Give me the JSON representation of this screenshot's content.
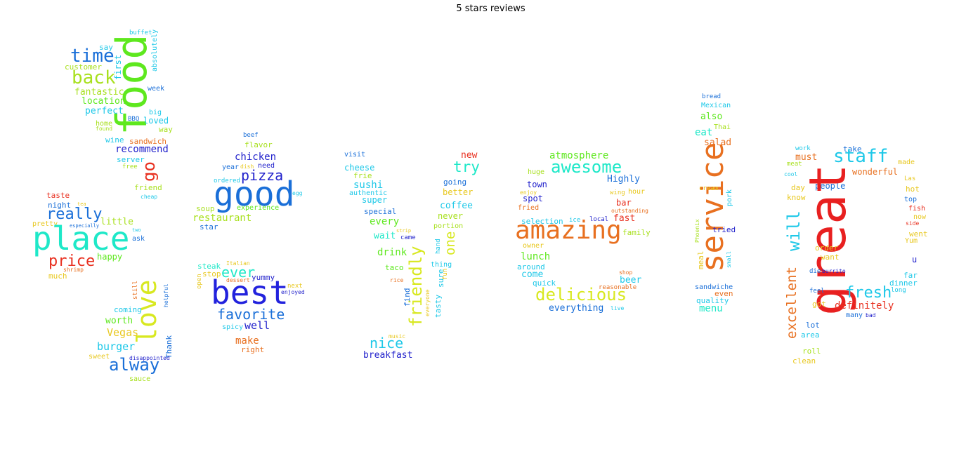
{
  "title": "5 stars reviews",
  "words": [
    {
      "t": "buffet",
      "c": "#1ec8e8"
    },
    {
      "t": "absolutely",
      "c": "#1ec8e8"
    },
    {
      "t": "say",
      "c": "#1ec8e8"
    },
    {
      "t": "time",
      "c": "#1a6fd8"
    },
    {
      "t": "first",
      "c": "#1ec8e8"
    },
    {
      "t": "customer",
      "c": "#a8e01e"
    },
    {
      "t": "food",
      "c": "#5ee81e"
    },
    {
      "t": "back",
      "c": "#a8e01e"
    },
    {
      "t": "fantastic",
      "c": "#a8e01e"
    },
    {
      "t": "week",
      "c": "#1a6fd8"
    },
    {
      "t": "location",
      "c": "#5ee81e"
    },
    {
      "t": "perfect",
      "c": "#1ec8e8"
    },
    {
      "t": "big",
      "c": "#1ec8e8"
    },
    {
      "t": "home",
      "c": "#a8e01e"
    },
    {
      "t": "BBQ",
      "c": "#1a6fd8"
    },
    {
      "t": "loved",
      "c": "#1ec8e8"
    },
    {
      "t": "found",
      "c": "#a8e01e"
    },
    {
      "t": "way",
      "c": "#a8e01e"
    },
    {
      "t": "wine",
      "c": "#1ec8e8"
    },
    {
      "t": "sandwich",
      "c": "#e87020"
    },
    {
      "t": "recommend",
      "c": "#2222cc"
    },
    {
      "t": "server",
      "c": "#1ec8e8"
    },
    {
      "t": "go",
      "c": "#e83020"
    },
    {
      "t": "free",
      "c": "#a8e01e"
    },
    {
      "t": "friend",
      "c": "#a8e01e"
    },
    {
      "t": "taste",
      "c": "#e83020"
    },
    {
      "t": "cheap",
      "c": "#1ec8e8"
    },
    {
      "t": "night",
      "c": "#1a6fd8"
    },
    {
      "t": "tea",
      "c": "#e8c820"
    },
    {
      "t": "really",
      "c": "#1a6fd8"
    },
    {
      "t": "pretty",
      "c": "#e8c820"
    },
    {
      "t": "especially",
      "c": "#1a6fd8"
    },
    {
      "t": "little",
      "c": "#a8e01e"
    },
    {
      "t": "two",
      "c": "#1ec8e8"
    },
    {
      "t": "place",
      "c": "#1ee8c8"
    },
    {
      "t": "ask",
      "c": "#1a6fd8"
    },
    {
      "t": "price",
      "c": "#e83020"
    },
    {
      "t": "happy",
      "c": "#5ee81e"
    },
    {
      "t": "shrimp",
      "c": "#e87020"
    },
    {
      "t": "much",
      "c": "#e8c820"
    },
    {
      "t": "still",
      "c": "#e87020"
    },
    {
      "t": "helpful",
      "c": "#1a6fd8"
    },
    {
      "t": "love",
      "c": "#d8e820"
    },
    {
      "t": "coming",
      "c": "#1ec8e8"
    },
    {
      "t": "worth",
      "c": "#5ee81e"
    },
    {
      "t": "Thank",
      "c": "#1a6fd8"
    },
    {
      "t": "Vegas",
      "c": "#e8c820"
    },
    {
      "t": "burger",
      "c": "#1ec8e8"
    },
    {
      "t": "sweet",
      "c": "#e8c820"
    },
    {
      "t": "disappointed",
      "c": "#2222cc"
    },
    {
      "t": "alway",
      "c": "#1a6fd8"
    },
    {
      "t": "sauce",
      "c": "#a8e01e"
    },
    {
      "t": "beef",
      "c": "#1a6fd8"
    },
    {
      "t": "flavor",
      "c": "#a8e01e"
    },
    {
      "t": "chicken",
      "c": "#2222cc"
    },
    {
      "t": "year",
      "c": "#1a6fd8"
    },
    {
      "t": "dish",
      "c": "#e8c820"
    },
    {
      "t": "need",
      "c": "#2222cc"
    },
    {
      "t": "pizza",
      "c": "#2222cc"
    },
    {
      "t": "ordered",
      "c": "#1ec8e8"
    },
    {
      "t": "good",
      "c": "#1a6fd8"
    },
    {
      "t": "egg",
      "c": "#1ec8e8"
    },
    {
      "t": "soup",
      "c": "#a8e01e"
    },
    {
      "t": "experience",
      "c": "#5ee81e"
    },
    {
      "t": "restaurant",
      "c": "#a8e01e"
    },
    {
      "t": "star",
      "c": "#1a6fd8"
    },
    {
      "t": "Italian",
      "c": "#e8c820"
    },
    {
      "t": "steak",
      "c": "#1ee8c8"
    },
    {
      "t": "ever",
      "c": "#1ee8c8"
    },
    {
      "t": "open",
      "c": "#e8c820"
    },
    {
      "t": "stop",
      "c": "#e8c820"
    },
    {
      "t": "yummy",
      "c": "#2222cc"
    },
    {
      "t": "dessert",
      "c": "#e87020"
    },
    {
      "t": "best",
      "c": "#2222dd"
    },
    {
      "t": "next",
      "c": "#e8c820"
    },
    {
      "t": "enjoyed",
      "c": "#2222cc"
    },
    {
      "t": "favorite",
      "c": "#1a6fd8"
    },
    {
      "t": "spicy",
      "c": "#1ec8e8"
    },
    {
      "t": "well",
      "c": "#2222cc"
    },
    {
      "t": "make",
      "c": "#e87020"
    },
    {
      "t": "right",
      "c": "#e87020"
    },
    {
      "t": "visit",
      "c": "#1a6fd8"
    },
    {
      "t": "new",
      "c": "#e83020"
    },
    {
      "t": "try",
      "c": "#1ee8c8"
    },
    {
      "t": "cheese",
      "c": "#1ec8e8"
    },
    {
      "t": "frie",
      "c": "#a8e01e"
    },
    {
      "t": "going",
      "c": "#1a6fd8"
    },
    {
      "t": "sushi",
      "c": "#1ec8e8"
    },
    {
      "t": "authentic",
      "c": "#1ec8e8"
    },
    {
      "t": "better",
      "c": "#e8c820"
    },
    {
      "t": "super",
      "c": "#1ec8e8"
    },
    {
      "t": "coffee",
      "c": "#1ec8e8"
    },
    {
      "t": "special",
      "c": "#1a6fd8"
    },
    {
      "t": "never",
      "c": "#a8e01e"
    },
    {
      "t": "every",
      "c": "#5ee81e"
    },
    {
      "t": "portion",
      "c": "#a8e01e"
    },
    {
      "t": "strip",
      "c": "#e8c820"
    },
    {
      "t": "wait",
      "c": "#1ee8c8"
    },
    {
      "t": "came",
      "c": "#2222cc"
    },
    {
      "t": "hand",
      "c": "#1ec8e8"
    },
    {
      "t": "one",
      "c": "#d8e820"
    },
    {
      "t": "drink",
      "c": "#5ee81e"
    },
    {
      "t": "friendly",
      "c": "#d8e820"
    },
    {
      "t": "thing",
      "c": "#1ec8e8"
    },
    {
      "t": "taco",
      "c": "#5ee81e"
    },
    {
      "t": "sure",
      "c": "#1ec8e8"
    },
    {
      "t": "fun",
      "c": "#e8c820"
    },
    {
      "t": "rice",
      "c": "#e87020"
    },
    {
      "t": "find",
      "c": "#1a6fd8"
    },
    {
      "t": "everyone",
      "c": "#e8c820"
    },
    {
      "t": "tasty",
      "c": "#1ec8e8"
    },
    {
      "t": "music",
      "c": "#e8c820"
    },
    {
      "t": "nice",
      "c": "#1ec8e8"
    },
    {
      "t": "breakfast",
      "c": "#2222cc"
    },
    {
      "t": "atmosphere",
      "c": "#5ee81e"
    },
    {
      "t": "awesome",
      "c": "#1ee8c8"
    },
    {
      "t": "huge",
      "c": "#a8e01e"
    },
    {
      "t": "town",
      "c": "#2222cc"
    },
    {
      "t": "Highly",
      "c": "#1a6fd8"
    },
    {
      "t": "enjoy",
      "c": "#e8c820"
    },
    {
      "t": "wing",
      "c": "#e8c820"
    },
    {
      "t": "hour",
      "c": "#e8c820"
    },
    {
      "t": "spot",
      "c": "#2222cc"
    },
    {
      "t": "bar",
      "c": "#e83020"
    },
    {
      "t": "fried",
      "c": "#e87020"
    },
    {
      "t": "outstanding",
      "c": "#e87020"
    },
    {
      "t": "selection",
      "c": "#1ec8e8"
    },
    {
      "t": "ice",
      "c": "#1ec8e8"
    },
    {
      "t": "local",
      "c": "#2222cc"
    },
    {
      "t": "fast",
      "c": "#e83020"
    },
    {
      "t": "amazing",
      "c": "#e87020"
    },
    {
      "t": "family",
      "c": "#a8e01e"
    },
    {
      "t": "owner",
      "c": "#e8c820"
    },
    {
      "t": "lunch",
      "c": "#5ee81e"
    },
    {
      "t": "around",
      "c": "#1ec8e8"
    },
    {
      "t": "come",
      "c": "#1ec8e8"
    },
    {
      "t": "shop",
      "c": "#e87020"
    },
    {
      "t": "quick",
      "c": "#1ec8e8"
    },
    {
      "t": "beer",
      "c": "#1ec8e8"
    },
    {
      "t": "reasonable",
      "c": "#e87020"
    },
    {
      "t": "delicious",
      "c": "#d8e820"
    },
    {
      "t": "everything",
      "c": "#1a6fd8"
    },
    {
      "t": "live",
      "c": "#1ec8e8"
    },
    {
      "t": "bread",
      "c": "#1a6fd8"
    },
    {
      "t": "Mexican",
      "c": "#1ec8e8"
    },
    {
      "t": "also",
      "c": "#5ee81e"
    },
    {
      "t": "Thai",
      "c": "#a8e01e"
    },
    {
      "t": "eat",
      "c": "#1ee8c8"
    },
    {
      "t": "salad",
      "c": "#e87020"
    },
    {
      "t": "service",
      "c": "#e87020"
    },
    {
      "t": "cream",
      "c": "#e8c820"
    },
    {
      "t": "pork",
      "c": "#1ec8e8"
    },
    {
      "t": "tried",
      "c": "#2222cc"
    },
    {
      "t": "Phoenix",
      "c": "#a8e01e"
    },
    {
      "t": "meal",
      "c": "#e8c820"
    },
    {
      "t": "small",
      "c": "#1ec8e8"
    },
    {
      "t": "sandwiche",
      "c": "#1a6fd8"
    },
    {
      "t": "even",
      "c": "#e87020"
    },
    {
      "t": "quality",
      "c": "#1ec8e8"
    },
    {
      "t": "menu",
      "c": "#1ee8c8"
    },
    {
      "t": "work",
      "c": "#1ec8e8"
    },
    {
      "t": "take",
      "c": "#1a6fd8"
    },
    {
      "t": "staff",
      "c": "#1ec8e8"
    },
    {
      "t": "must",
      "c": "#e87020"
    },
    {
      "t": "made",
      "c": "#e8c820"
    },
    {
      "t": "meat",
      "c": "#a8e01e"
    },
    {
      "t": "wonderful",
      "c": "#e87020"
    },
    {
      "t": "cool",
      "c": "#1ec8e8"
    },
    {
      "t": "Las",
      "c": "#e8c820"
    },
    {
      "t": "day",
      "c": "#e8c820"
    },
    {
      "t": "people",
      "c": "#1a6fd8"
    },
    {
      "t": "hot",
      "c": "#e8c820"
    },
    {
      "t": "know",
      "c": "#e8c820"
    },
    {
      "t": "top",
      "c": "#1a6fd8"
    },
    {
      "t": "fish",
      "c": "#e83020"
    },
    {
      "t": "great",
      "c": "#e82020"
    },
    {
      "t": "will",
      "c": "#1ec8e8"
    },
    {
      "t": "now",
      "c": "#e8c820"
    },
    {
      "t": "side",
      "c": "#e83020"
    },
    {
      "t": "went",
      "c": "#e8c820"
    },
    {
      "t": "Yum",
      "c": "#e8c820"
    },
    {
      "t": "order",
      "c": "#e8c820"
    },
    {
      "t": "want",
      "c": "#e8c820"
    },
    {
      "t": "u",
      "c": "#2222cc"
    },
    {
      "t": "excellent",
      "c": "#e87020"
    },
    {
      "t": "die",
      "c": "#1a6fd8"
    },
    {
      "t": "burrito",
      "c": "#2222cc"
    },
    {
      "t": "far",
      "c": "#1ec8e8"
    },
    {
      "t": "dinner",
      "c": "#1ec8e8"
    },
    {
      "t": "fresh",
      "c": "#1ec8e8"
    },
    {
      "t": "long",
      "c": "#1ec8e8"
    },
    {
      "t": "feel",
      "c": "#1a6fd8"
    },
    {
      "t": "got",
      "c": "#e8c820"
    },
    {
      "t": "definitely",
      "c": "#e83020"
    },
    {
      "t": "many",
      "c": "#1a6fd8"
    },
    {
      "t": "bad",
      "c": "#2222cc"
    },
    {
      "t": "lot",
      "c": "#1a6fd8"
    },
    {
      "t": "area",
      "c": "#1ec8e8"
    },
    {
      "t": "roll",
      "c": "#a8e01e"
    },
    {
      "t": "clean",
      "c": "#e8c820"
    }
  ]
}
